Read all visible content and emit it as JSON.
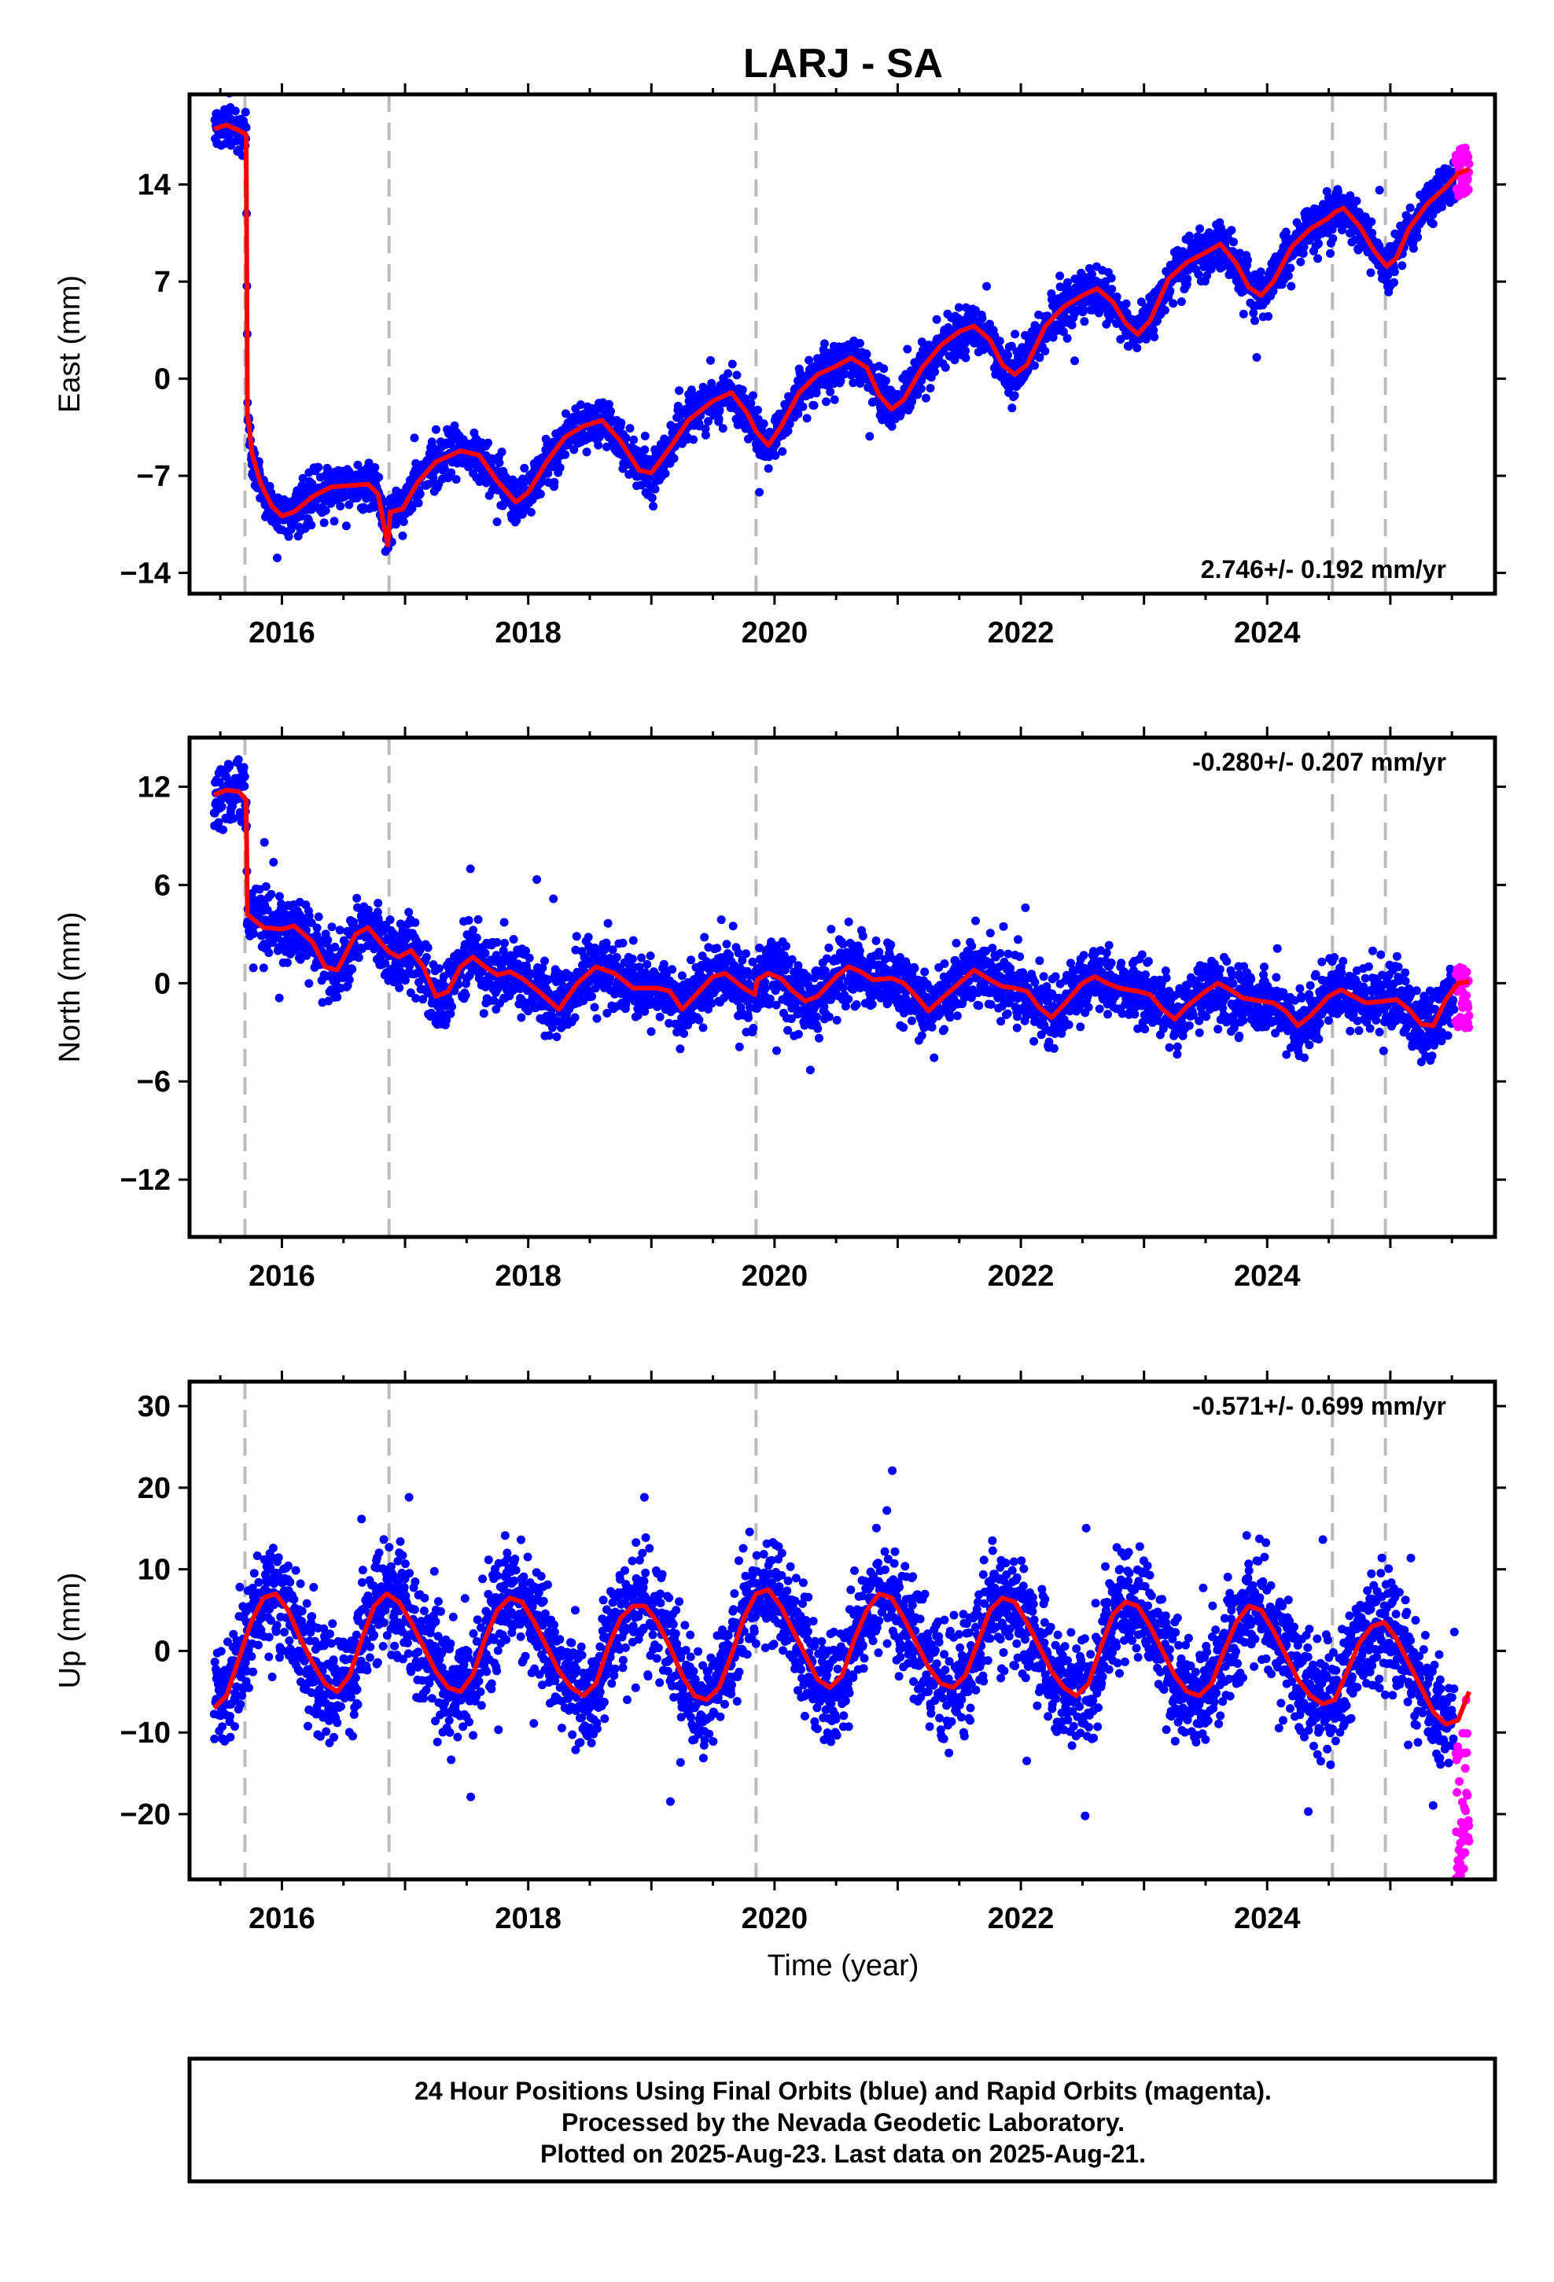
{
  "station_title": "LARJ - SA",
  "xlabel": "Time (year)",
  "footer": {
    "line1": "24 Hour Positions Using Final Orbits (blue) and Rapid Orbits (magenta).",
    "line2": "Processed by the Nevada Geodetic Laboratory.",
    "line3": "Plotted on 2025-Aug-23. Last data on 2025-Aug-21."
  },
  "colors": {
    "final": "#0000ff",
    "rapid": "#ff00ff",
    "model": "#ff0000",
    "events": "#bbbbbb",
    "frame": "#000000"
  },
  "chart_data": [
    {
      "type": "scatter",
      "component": "east",
      "ylabel": "East (mm)",
      "rate_label": "2.746+/- 0.192 mm/yr",
      "rate_position": "bottom-right",
      "xlim": [
        2015.25,
        2025.85
      ],
      "ylim": [
        -15.5,
        20.5
      ],
      "xticks": [
        2016,
        2018,
        2020,
        2022,
        2024
      ],
      "yticks": [
        -14,
        -7,
        0,
        7,
        14
      ],
      "event_lines": [
        2015.7,
        2016.87,
        2019.85,
        2024.53,
        2024.96
      ],
      "final_range": [
        2015.45,
        2025.52
      ],
      "rapid_range": [
        2025.53,
        2025.64
      ],
      "model": [
        [
          2015.45,
          18.0
        ],
        [
          2015.55,
          18.3
        ],
        [
          2015.65,
          17.9
        ],
        [
          2015.71,
          17.6
        ],
        [
          2015.72,
          -2.5
        ],
        [
          2015.76,
          -5.5
        ],
        [
          2015.83,
          -7.6
        ],
        [
          2015.92,
          -9.2
        ],
        [
          2016.0,
          -9.9
        ],
        [
          2016.1,
          -9.6
        ],
        [
          2016.25,
          -8.5
        ],
        [
          2016.4,
          -7.8
        ],
        [
          2016.55,
          -7.7
        ],
        [
          2016.7,
          -7.6
        ],
        [
          2016.78,
          -8.3
        ],
        [
          2016.86,
          -12.0
        ],
        [
          2016.88,
          -9.6
        ],
        [
          2016.98,
          -9.4
        ],
        [
          2017.1,
          -7.5
        ],
        [
          2017.25,
          -6.0
        ],
        [
          2017.45,
          -5.2
        ],
        [
          2017.6,
          -5.5
        ],
        [
          2017.75,
          -7.4
        ],
        [
          2017.9,
          -8.9
        ],
        [
          2018.0,
          -8.2
        ],
        [
          2018.15,
          -6.0
        ],
        [
          2018.3,
          -4.2
        ],
        [
          2018.45,
          -3.4
        ],
        [
          2018.6,
          -3.0
        ],
        [
          2018.75,
          -4.5
        ],
        [
          2018.9,
          -6.6
        ],
        [
          2019.0,
          -6.8
        ],
        [
          2019.15,
          -5.0
        ],
        [
          2019.3,
          -3.0
        ],
        [
          2019.5,
          -1.6
        ],
        [
          2019.65,
          -1.0
        ],
        [
          2019.78,
          -2.5
        ],
        [
          2019.85,
          -3.8
        ],
        [
          2019.95,
          -4.8
        ],
        [
          2020.05,
          -3.5
        ],
        [
          2020.2,
          -1.0
        ],
        [
          2020.35,
          0.3
        ],
        [
          2020.5,
          0.9
        ],
        [
          2020.62,
          1.5
        ],
        [
          2020.75,
          0.8
        ],
        [
          2020.85,
          -1.2
        ],
        [
          2020.95,
          -2.2
        ],
        [
          2021.05,
          -1.5
        ],
        [
          2021.2,
          0.8
        ],
        [
          2021.35,
          2.4
        ],
        [
          2021.5,
          3.4
        ],
        [
          2021.62,
          3.8
        ],
        [
          2021.75,
          2.8
        ],
        [
          2021.85,
          1.0
        ],
        [
          2021.95,
          0.3
        ],
        [
          2022.05,
          1.0
        ],
        [
          2022.2,
          3.8
        ],
        [
          2022.35,
          5.2
        ],
        [
          2022.5,
          6.0
        ],
        [
          2022.62,
          6.5
        ],
        [
          2022.75,
          5.5
        ],
        [
          2022.85,
          4.0
        ],
        [
          2022.95,
          3.2
        ],
        [
          2023.05,
          4.2
        ],
        [
          2023.2,
          7.2
        ],
        [
          2023.35,
          8.4
        ],
        [
          2023.5,
          9.1
        ],
        [
          2023.62,
          9.7
        ],
        [
          2023.75,
          8.3
        ],
        [
          2023.85,
          6.6
        ],
        [
          2023.95,
          6.0
        ],
        [
          2024.05,
          7.0
        ],
        [
          2024.2,
          9.5
        ],
        [
          2024.35,
          10.8
        ],
        [
          2024.5,
          11.6
        ],
        [
          2024.55,
          12.0
        ],
        [
          2024.62,
          12.3
        ],
        [
          2024.75,
          11.0
        ],
        [
          2024.87,
          9.2
        ],
        [
          2024.97,
          8.1
        ],
        [
          2025.05,
          8.7
        ],
        [
          2025.15,
          10.8
        ],
        [
          2025.3,
          12.6
        ],
        [
          2025.45,
          13.8
        ],
        [
          2025.55,
          14.8
        ],
        [
          2025.64,
          15.1
        ]
      ],
      "scatter_std": 0.8,
      "outlier_rate": 0.006,
      "outlier_span": 3.0,
      "rapid_spread": [
        -1.8,
        1.8
      ]
    },
    {
      "type": "scatter",
      "component": "north",
      "ylabel": "North (mm)",
      "rate_label": "-0.280+/- 0.207 mm/yr",
      "rate_position": "top-right",
      "xlim": [
        2015.25,
        2025.85
      ],
      "ylim": [
        -15.5,
        15
      ],
      "xticks": [
        2016,
        2018,
        2020,
        2022,
        2024
      ],
      "yticks": [
        -12,
        -6,
        0,
        6,
        12
      ],
      "event_lines": [
        2015.7,
        2016.87,
        2019.85,
        2024.53,
        2024.96
      ],
      "final_range": [
        2015.45,
        2025.52
      ],
      "rapid_range": [
        2025.53,
        2025.64
      ],
      "model": [
        [
          2015.45,
          11.5
        ],
        [
          2015.55,
          11.8
        ],
        [
          2015.65,
          11.7
        ],
        [
          2015.71,
          11.2
        ],
        [
          2015.72,
          4.2
        ],
        [
          2015.85,
          3.4
        ],
        [
          2016.0,
          3.3
        ],
        [
          2016.1,
          3.5
        ],
        [
          2016.25,
          2.5
        ],
        [
          2016.35,
          1.0
        ],
        [
          2016.45,
          0.8
        ],
        [
          2016.6,
          3.0
        ],
        [
          2016.7,
          3.4
        ],
        [
          2016.8,
          2.5
        ],
        [
          2016.87,
          1.9
        ],
        [
          2016.95,
          1.6
        ],
        [
          2017.05,
          2.0
        ],
        [
          2017.15,
          1.0
        ],
        [
          2017.25,
          -0.8
        ],
        [
          2017.35,
          -0.5
        ],
        [
          2017.45,
          1.0
        ],
        [
          2017.55,
          1.6
        ],
        [
          2017.65,
          1.0
        ],
        [
          2017.75,
          0.5
        ],
        [
          2017.85,
          0.7
        ],
        [
          2017.95,
          0.3
        ],
        [
          2018.1,
          -0.6
        ],
        [
          2018.25,
          -1.6
        ],
        [
          2018.4,
          0.0
        ],
        [
          2018.55,
          1.0
        ],
        [
          2018.7,
          0.6
        ],
        [
          2018.85,
          -0.3
        ],
        [
          2018.95,
          -0.3
        ],
        [
          2019.05,
          -0.3
        ],
        [
          2019.15,
          -0.5
        ],
        [
          2019.25,
          -1.6
        ],
        [
          2019.35,
          -0.8
        ],
        [
          2019.5,
          0.4
        ],
        [
          2019.6,
          0.6
        ],
        [
          2019.75,
          -0.3
        ],
        [
          2019.84,
          -0.7
        ],
        [
          2019.86,
          0.2
        ],
        [
          2019.95,
          0.6
        ],
        [
          2020.05,
          0.3
        ],
        [
          2020.15,
          -0.5
        ],
        [
          2020.25,
          -1.1
        ],
        [
          2020.35,
          -0.8
        ],
        [
          2020.5,
          0.4
        ],
        [
          2020.6,
          1.0
        ],
        [
          2020.7,
          0.7
        ],
        [
          2020.8,
          0.2
        ],
        [
          2020.95,
          0.3
        ],
        [
          2021.05,
          0.0
        ],
        [
          2021.15,
          -0.8
        ],
        [
          2021.25,
          -1.7
        ],
        [
          2021.35,
          -1.0
        ],
        [
          2021.5,
          0.0
        ],
        [
          2021.62,
          0.8
        ],
        [
          2021.75,
          0.2
        ],
        [
          2021.85,
          -0.2
        ],
        [
          2021.95,
          -0.3
        ],
        [
          2022.05,
          -0.5
        ],
        [
          2022.15,
          -1.5
        ],
        [
          2022.25,
          -2.1
        ],
        [
          2022.35,
          -1.3
        ],
        [
          2022.5,
          0.0
        ],
        [
          2022.6,
          0.4
        ],
        [
          2022.7,
          0.0
        ],
        [
          2022.8,
          -0.3
        ],
        [
          2022.95,
          -0.5
        ],
        [
          2023.05,
          -0.7
        ],
        [
          2023.15,
          -1.6
        ],
        [
          2023.25,
          -2.2
        ],
        [
          2023.35,
          -1.4
        ],
        [
          2023.5,
          -0.5
        ],
        [
          2023.6,
          0.0
        ],
        [
          2023.7,
          -0.4
        ],
        [
          2023.8,
          -0.9
        ],
        [
          2023.95,
          -1.1
        ],
        [
          2024.05,
          -1.2
        ],
        [
          2024.15,
          -1.7
        ],
        [
          2024.25,
          -2.6
        ],
        [
          2024.35,
          -2.0
        ],
        [
          2024.5,
          -0.8
        ],
        [
          2024.6,
          -0.4
        ],
        [
          2024.7,
          -0.8
        ],
        [
          2024.8,
          -1.2
        ],
        [
          2024.95,
          -1.1
        ],
        [
          2025.05,
          -1.0
        ],
        [
          2025.15,
          -1.6
        ],
        [
          2025.25,
          -2.5
        ],
        [
          2025.35,
          -2.6
        ],
        [
          2025.45,
          -1.0
        ],
        [
          2025.55,
          0.0
        ],
        [
          2025.64,
          0.1
        ]
      ],
      "scatter_std": 1.0,
      "outlier_rate": 0.004,
      "outlier_span": 3.5,
      "rapid_spread": [
        -3.0,
        1.0
      ]
    },
    {
      "type": "scatter",
      "component": "up",
      "ylabel": "Up (mm)",
      "rate_label": "-0.571+/- 0.699 mm/yr",
      "rate_position": "top-right",
      "xlim": [
        2015.25,
        2025.85
      ],
      "ylim": [
        -28,
        33
      ],
      "xticks": [
        2016,
        2018,
        2020,
        2022,
        2024
      ],
      "yticks": [
        -20,
        -10,
        0,
        10,
        20,
        30
      ],
      "event_lines": [
        2015.7,
        2016.87,
        2019.85,
        2024.53,
        2024.96
      ],
      "final_range": [
        2015.45,
        2025.52
      ],
      "rapid_range": [
        2025.53,
        2025.64
      ],
      "model": [
        [
          2015.45,
          -7.0
        ],
        [
          2015.55,
          -5.5
        ],
        [
          2015.65,
          -1.0
        ],
        [
          2015.75,
          3.5
        ],
        [
          2015.85,
          6.5
        ],
        [
          2015.95,
          7.0
        ],
        [
          2016.05,
          5.0
        ],
        [
          2016.15,
          1.5
        ],
        [
          2016.25,
          -1.5
        ],
        [
          2016.35,
          -4.0
        ],
        [
          2016.45,
          -5.0
        ],
        [
          2016.55,
          -3.0
        ],
        [
          2016.65,
          1.5
        ],
        [
          2016.75,
          5.5
        ],
        [
          2016.85,
          7.0
        ],
        [
          2016.95,
          6.0
        ],
        [
          2017.05,
          3.5
        ],
        [
          2017.15,
          0.5
        ],
        [
          2017.25,
          -2.5
        ],
        [
          2017.35,
          -4.5
        ],
        [
          2017.45,
          -5.0
        ],
        [
          2017.55,
          -3.0
        ],
        [
          2017.65,
          1.5
        ],
        [
          2017.75,
          5.0
        ],
        [
          2017.85,
          6.5
        ],
        [
          2017.95,
          6.0
        ],
        [
          2018.05,
          3.5
        ],
        [
          2018.15,
          0.5
        ],
        [
          2018.25,
          -2.5
        ],
        [
          2018.35,
          -4.5
        ],
        [
          2018.45,
          -5.5
        ],
        [
          2018.55,
          -4.0
        ],
        [
          2018.65,
          0.5
        ],
        [
          2018.75,
          4.0
        ],
        [
          2018.85,
          5.5
        ],
        [
          2018.95,
          5.5
        ],
        [
          2019.05,
          3.5
        ],
        [
          2019.15,
          0.5
        ],
        [
          2019.25,
          -3.0
        ],
        [
          2019.35,
          -5.5
        ],
        [
          2019.45,
          -6.0
        ],
        [
          2019.55,
          -4.5
        ],
        [
          2019.65,
          -0.5
        ],
        [
          2019.75,
          4.0
        ],
        [
          2019.85,
          7.0
        ],
        [
          2019.95,
          7.5
        ],
        [
          2020.05,
          5.5
        ],
        [
          2020.15,
          2.5
        ],
        [
          2020.25,
          -0.5
        ],
        [
          2020.35,
          -3.5
        ],
        [
          2020.45,
          -4.5
        ],
        [
          2020.55,
          -3.0
        ],
        [
          2020.65,
          1.5
        ],
        [
          2020.75,
          5.0
        ],
        [
          2020.85,
          7.0
        ],
        [
          2020.95,
          6.5
        ],
        [
          2021.05,
          4.0
        ],
        [
          2021.15,
          1.0
        ],
        [
          2021.25,
          -2.0
        ],
        [
          2021.35,
          -4.0
        ],
        [
          2021.45,
          -4.5
        ],
        [
          2021.55,
          -3.0
        ],
        [
          2021.65,
          1.0
        ],
        [
          2021.75,
          5.0
        ],
        [
          2021.85,
          6.5
        ],
        [
          2021.95,
          6.0
        ],
        [
          2022.05,
          3.5
        ],
        [
          2022.15,
          0.5
        ],
        [
          2022.25,
          -2.5
        ],
        [
          2022.35,
          -4.5
        ],
        [
          2022.45,
          -5.5
        ],
        [
          2022.55,
          -4.0
        ],
        [
          2022.65,
          0.5
        ],
        [
          2022.75,
          4.5
        ],
        [
          2022.85,
          6.0
        ],
        [
          2022.95,
          5.5
        ],
        [
          2023.05,
          3.0
        ],
        [
          2023.15,
          0.0
        ],
        [
          2023.25,
          -3.0
        ],
        [
          2023.35,
          -5.0
        ],
        [
          2023.45,
          -5.5
        ],
        [
          2023.55,
          -4.0
        ],
        [
          2023.65,
          0.0
        ],
        [
          2023.75,
          3.5
        ],
        [
          2023.85,
          5.5
        ],
        [
          2023.95,
          5.0
        ],
        [
          2024.05,
          2.5
        ],
        [
          2024.15,
          -0.5
        ],
        [
          2024.25,
          -3.5
        ],
        [
          2024.35,
          -5.5
        ],
        [
          2024.45,
          -6.5
        ],
        [
          2024.55,
          -6.0
        ],
        [
          2024.65,
          -2.5
        ],
        [
          2024.75,
          1.0
        ],
        [
          2024.85,
          3.0
        ],
        [
          2024.95,
          3.5
        ],
        [
          2025.05,
          1.5
        ],
        [
          2025.15,
          -1.5
        ],
        [
          2025.25,
          -4.5
        ],
        [
          2025.35,
          -7.5
        ],
        [
          2025.45,
          -9.0
        ],
        [
          2025.55,
          -8.5
        ],
        [
          2025.64,
          -5.0
        ]
      ],
      "scatter_std": 3.4,
      "outlier_rate": 0.008,
      "outlier_span": 12.0,
      "rapid_spread": [
        -20,
        0
      ]
    }
  ]
}
